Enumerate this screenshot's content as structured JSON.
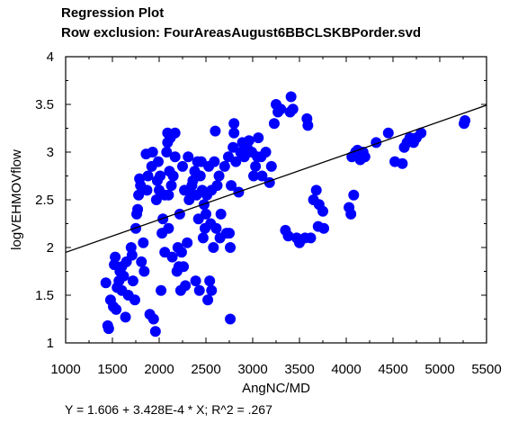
{
  "chart_data": {
    "type": "scatter",
    "title": "Regression Plot",
    "subtitle": "Row exclusion: FourAreasAugust6BBCLSKBPorder.svd",
    "xlabel": "AngNC/MD",
    "ylabel": "logVEHMOVflow",
    "xlim": [
      1000,
      5500
    ],
    "ylim": [
      1,
      4
    ],
    "xticks": [
      1000,
      1500,
      2000,
      2500,
      3000,
      3500,
      4000,
      4500,
      5000,
      5500
    ],
    "yticks": [
      1,
      1.5,
      2,
      2.5,
      3,
      3.5,
      4
    ],
    "grid": false,
    "point_color": "#0000ff",
    "line_color": "#000000",
    "regression": {
      "intercept": 1.606,
      "slope": 0.0003428,
      "r2": 0.267
    },
    "equation": "Y = 1.606 + 3.428E-4 * X; R^2 = .267",
    "points": [
      [
        1430,
        1.63
      ],
      [
        1450,
        1.18
      ],
      [
        1460,
        1.15
      ],
      [
        1480,
        1.45
      ],
      [
        1510,
        1.38
      ],
      [
        1520,
        1.82
      ],
      [
        1530,
        1.9
      ],
      [
        1540,
        1.35
      ],
      [
        1550,
        1.58
      ],
      [
        1570,
        1.65
      ],
      [
        1580,
        1.75
      ],
      [
        1600,
        1.55
      ],
      [
        1600,
        1.8
      ],
      [
        1620,
        1.7
      ],
      [
        1640,
        1.27
      ],
      [
        1650,
        1.85
      ],
      [
        1670,
        1.5
      ],
      [
        1700,
        2.0
      ],
      [
        1710,
        1.92
      ],
      [
        1720,
        1.65
      ],
      [
        1740,
        1.45
      ],
      [
        1750,
        2.2
      ],
      [
        1760,
        2.35
      ],
      [
        1770,
        2.4
      ],
      [
        1780,
        2.55
      ],
      [
        1790,
        2.72
      ],
      [
        1800,
        2.65
      ],
      [
        1810,
        1.85
      ],
      [
        1830,
        2.05
      ],
      [
        1840,
        1.75
      ],
      [
        1860,
        2.98
      ],
      [
        1870,
        2.6
      ],
      [
        1880,
        2.75
      ],
      [
        1900,
        1.3
      ],
      [
        1920,
        2.85
      ],
      [
        1930,
        3.0
      ],
      [
        1940,
        1.25
      ],
      [
        1960,
        1.12
      ],
      [
        1970,
        2.5
      ],
      [
        1980,
        2.7
      ],
      [
        1990,
        2.9
      ],
      [
        2000,
        2.6
      ],
      [
        2010,
        2.75
      ],
      [
        2020,
        1.55
      ],
      [
        2030,
        2.15
      ],
      [
        2040,
        2.3
      ],
      [
        2060,
        1.95
      ],
      [
        2060,
        2.55
      ],
      [
        2080,
        3.0
      ],
      [
        2090,
        3.1
      ],
      [
        2090,
        3.2
      ],
      [
        2100,
        2.2
      ],
      [
        2100,
        2.55
      ],
      [
        2110,
        2.8
      ],
      [
        2120,
        3.15
      ],
      [
        2130,
        2.65
      ],
      [
        2140,
        1.9
      ],
      [
        2150,
        2.75
      ],
      [
        2170,
        2.95
      ],
      [
        2170,
        3.2
      ],
      [
        2190,
        1.75
      ],
      [
        2200,
        2.0
      ],
      [
        2210,
        1.8
      ],
      [
        2220,
        2.35
      ],
      [
        2230,
        1.55
      ],
      [
        2240,
        1.95
      ],
      [
        2250,
        2.85
      ],
      [
        2260,
        1.8
      ],
      [
        2270,
        2.6
      ],
      [
        2280,
        1.6
      ],
      [
        2300,
        2.05
      ],
      [
        2310,
        2.95
      ],
      [
        2320,
        2.5
      ],
      [
        2340,
        2.55
      ],
      [
        2350,
        2.65
      ],
      [
        2360,
        2.7
      ],
      [
        2380,
        2.8
      ],
      [
        2390,
        1.65
      ],
      [
        2400,
        2.55
      ],
      [
        2410,
        2.9
      ],
      [
        2420,
        2.3
      ],
      [
        2430,
        1.55
      ],
      [
        2440,
        2.75
      ],
      [
        2450,
        2.9
      ],
      [
        2460,
        2.6
      ],
      [
        2470,
        2.1
      ],
      [
        2480,
        2.45
      ],
      [
        2490,
        2.2
      ],
      [
        2500,
        2.35
      ],
      [
        2510,
        2.55
      ],
      [
        2520,
        1.45
      ],
      [
        2530,
        2.85
      ],
      [
        2540,
        1.65
      ],
      [
        2550,
        2.25
      ],
      [
        2560,
        1.55
      ],
      [
        2560,
        2.6
      ],
      [
        2580,
        2.0
      ],
      [
        2590,
        2.9
      ],
      [
        2600,
        3.22
      ],
      [
        2610,
        2.2
      ],
      [
        2620,
        2.65
      ],
      [
        2640,
        2.75
      ],
      [
        2650,
        2.1
      ],
      [
        2660,
        2.35
      ],
      [
        2700,
        2.85
      ],
      [
        2720,
        2.15
      ],
      [
        2740,
        2.95
      ],
      [
        2750,
        2.15
      ],
      [
        2760,
        2.0
      ],
      [
        2760,
        1.25
      ],
      [
        2770,
        2.65
      ],
      [
        2790,
        3.05
      ],
      [
        2800,
        3.2
      ],
      [
        2800,
        3.3
      ],
      [
        2820,
        2.9
      ],
      [
        2850,
        2.58
      ],
      [
        2870,
        3.0
      ],
      [
        2890,
        3.1
      ],
      [
        2910,
        2.95
      ],
      [
        2940,
        3.05
      ],
      [
        2960,
        3.12
      ],
      [
        2990,
        3.0
      ],
      [
        3010,
        2.75
      ],
      [
        3030,
        2.85
      ],
      [
        3050,
        2.95
      ],
      [
        3060,
        3.15
      ],
      [
        3090,
        2.95
      ],
      [
        3100,
        2.75
      ],
      [
        3140,
        3.0
      ],
      [
        3180,
        2.68
      ],
      [
        3200,
        2.85
      ],
      [
        3230,
        3.3
      ],
      [
        3250,
        3.5
      ],
      [
        3270,
        3.42
      ],
      [
        3300,
        3.45
      ],
      [
        3350,
        2.18
      ],
      [
        3380,
        2.12
      ],
      [
        3400,
        3.42
      ],
      [
        3410,
        3.58
      ],
      [
        3430,
        3.45
      ],
      [
        3470,
        2.1
      ],
      [
        3500,
        2.05
      ],
      [
        3560,
        2.1
      ],
      [
        3580,
        3.35
      ],
      [
        3590,
        3.28
      ],
      [
        3620,
        2.1
      ],
      [
        3650,
        2.5
      ],
      [
        3680,
        2.6
      ],
      [
        3700,
        2.22
      ],
      [
        3710,
        2.45
      ],
      [
        3750,
        2.38
      ],
      [
        3760,
        2.2
      ],
      [
        4030,
        2.42
      ],
      [
        4050,
        2.35
      ],
      [
        4060,
        2.95
      ],
      [
        4080,
        2.55
      ],
      [
        4100,
        3.0
      ],
      [
        4120,
        3.02
      ],
      [
        4150,
        2.92
      ],
      [
        4180,
        3.0
      ],
      [
        4200,
        2.95
      ],
      [
        4320,
        3.1
      ],
      [
        4450,
        3.2
      ],
      [
        4520,
        2.9
      ],
      [
        4600,
        2.88
      ],
      [
        4620,
        3.05
      ],
      [
        4650,
        3.1
      ],
      [
        4680,
        3.15
      ],
      [
        4720,
        3.1
      ],
      [
        4750,
        3.15
      ],
      [
        4800,
        3.2
      ],
      [
        5260,
        3.3
      ],
      [
        5270,
        3.33
      ]
    ]
  }
}
